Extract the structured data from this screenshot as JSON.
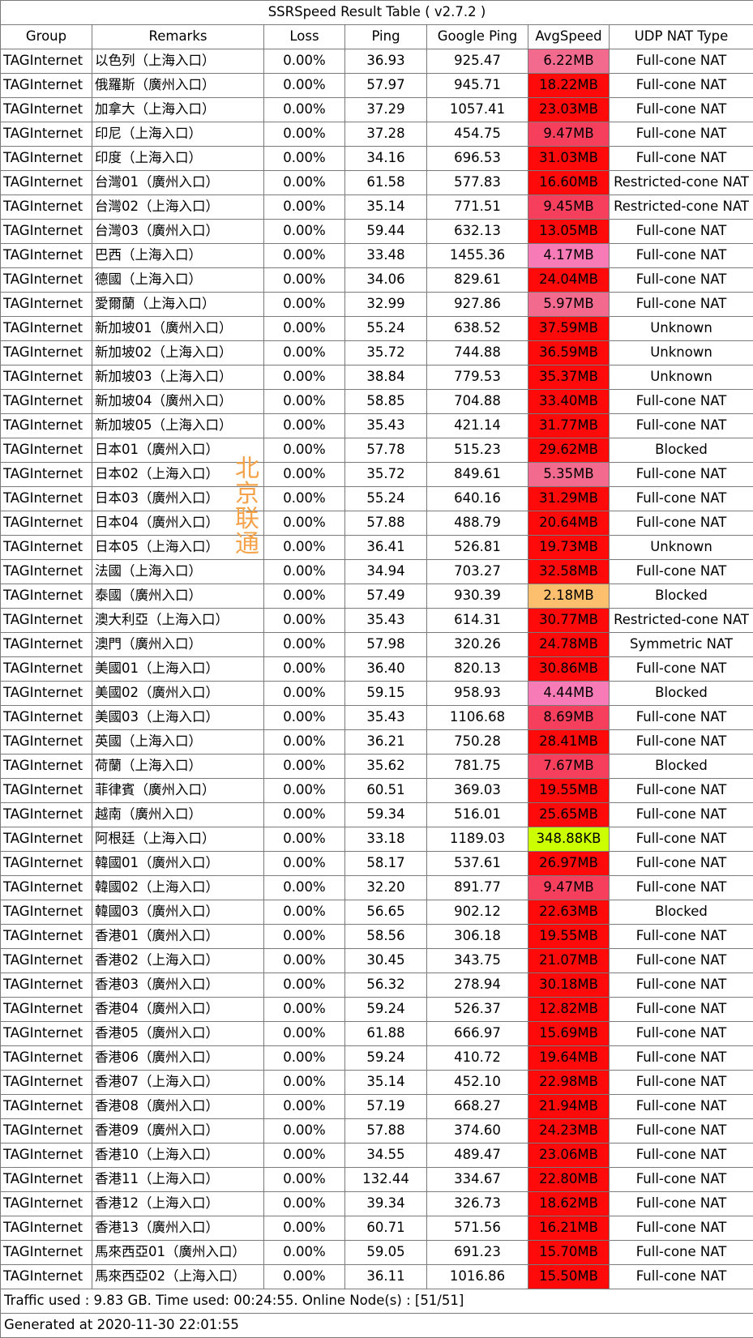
{
  "title": "SSRSpeed Result Table ( v2.7.2 )",
  "columns": [
    "Group",
    "Remarks",
    "Loss",
    "Ping",
    "Google Ping",
    "AvgSpeed",
    "UDP NAT Type"
  ],
  "rows": [
    {
      "group": "TAGInternet",
      "remarks": "以色列（上海入口）",
      "loss": "0.00%",
      "ping": "36.93",
      "google_ping": "925.47",
      "avg_speed": "6.22MB",
      "speed_color": "#f26b8f",
      "nat": "Full-cone NAT"
    },
    {
      "group": "TAGInternet",
      "remarks": "俄羅斯（廣州入口）",
      "loss": "0.00%",
      "ping": "57.97",
      "google_ping": "945.71",
      "avg_speed": "18.22MB",
      "speed_color": "#ff0a0a",
      "nat": "Full-cone NAT"
    },
    {
      "group": "TAGInternet",
      "remarks": "加拿大（上海入口）",
      "loss": "0.00%",
      "ping": "37.29",
      "google_ping": "1057.41",
      "avg_speed": "23.03MB",
      "speed_color": "#ff0a0a",
      "nat": "Full-cone NAT"
    },
    {
      "group": "TAGInternet",
      "remarks": "印尼（上海入口）",
      "loss": "0.00%",
      "ping": "37.28",
      "google_ping": "454.75",
      "avg_speed": "9.47MB",
      "speed_color": "#f53f5c",
      "nat": "Full-cone NAT"
    },
    {
      "group": "TAGInternet",
      "remarks": "印度（上海入口）",
      "loss": "0.00%",
      "ping": "34.16",
      "google_ping": "696.53",
      "avg_speed": "31.03MB",
      "speed_color": "#ff0a0a",
      "nat": "Full-cone NAT"
    },
    {
      "group": "TAGInternet",
      "remarks": "台灣01（廣州入口）",
      "loss": "0.00%",
      "ping": "61.58",
      "google_ping": "577.83",
      "avg_speed": "16.60MB",
      "speed_color": "#ff0a0a",
      "nat": "Restricted-cone NAT"
    },
    {
      "group": "TAGInternet",
      "remarks": "台灣02（上海入口）",
      "loss": "0.00%",
      "ping": "35.14",
      "google_ping": "771.51",
      "avg_speed": "9.45MB",
      "speed_color": "#f53f5c",
      "nat": "Restricted-cone NAT"
    },
    {
      "group": "TAGInternet",
      "remarks": "台灣03（廣州入口）",
      "loss": "0.00%",
      "ping": "59.44",
      "google_ping": "632.13",
      "avg_speed": "13.05MB",
      "speed_color": "#ff0a0a",
      "nat": "Full-cone NAT"
    },
    {
      "group": "TAGInternet",
      "remarks": "巴西（上海入口）",
      "loss": "0.00%",
      "ping": "33.48",
      "google_ping": "1455.36",
      "avg_speed": "4.17MB",
      "speed_color": "#f77bb7",
      "nat": "Full-cone NAT"
    },
    {
      "group": "TAGInternet",
      "remarks": "德國（上海入口）",
      "loss": "0.00%",
      "ping": "34.06",
      "google_ping": "829.61",
      "avg_speed": "24.04MB",
      "speed_color": "#ff0a0a",
      "nat": "Full-cone NAT"
    },
    {
      "group": "TAGInternet",
      "remarks": "愛爾蘭（上海入口）",
      "loss": "0.00%",
      "ping": "32.99",
      "google_ping": "927.86",
      "avg_speed": "5.97MB",
      "speed_color": "#f26b8f",
      "nat": "Full-cone NAT"
    },
    {
      "group": "TAGInternet",
      "remarks": "新加坡01（廣州入口）",
      "loss": "0.00%",
      "ping": "55.24",
      "google_ping": "638.52",
      "avg_speed": "37.59MB",
      "speed_color": "#ff0a0a",
      "nat": "Unknown"
    },
    {
      "group": "TAGInternet",
      "remarks": "新加坡02（上海入口）",
      "loss": "0.00%",
      "ping": "35.72",
      "google_ping": "744.88",
      "avg_speed": "36.59MB",
      "speed_color": "#ff0a0a",
      "nat": "Unknown"
    },
    {
      "group": "TAGInternet",
      "remarks": "新加坡03（上海入口）",
      "loss": "0.00%",
      "ping": "38.84",
      "google_ping": "779.53",
      "avg_speed": "35.37MB",
      "speed_color": "#ff0a0a",
      "nat": "Unknown"
    },
    {
      "group": "TAGInternet",
      "remarks": "新加坡04（廣州入口）",
      "loss": "0.00%",
      "ping": "58.85",
      "google_ping": "704.88",
      "avg_speed": "33.40MB",
      "speed_color": "#ff0a0a",
      "nat": "Full-cone NAT"
    },
    {
      "group": "TAGInternet",
      "remarks": "新加坡05（上海入口）",
      "loss": "0.00%",
      "ping": "35.43",
      "google_ping": "421.14",
      "avg_speed": "31.77MB",
      "speed_color": "#ff0a0a",
      "nat": "Full-cone NAT"
    },
    {
      "group": "TAGInternet",
      "remarks": "日本01（廣州入口）",
      "loss": "0.00%",
      "ping": "57.78",
      "google_ping": "515.23",
      "avg_speed": "29.62MB",
      "speed_color": "#ff0a0a",
      "nat": "Blocked"
    },
    {
      "group": "TAGInternet",
      "remarks": "日本02（上海入口）",
      "loss": "0.00%",
      "ping": "35.72",
      "google_ping": "849.61",
      "avg_speed": "5.35MB",
      "speed_color": "#f26b8f",
      "nat": "Full-cone NAT"
    },
    {
      "group": "TAGInternet",
      "remarks": "日本03（廣州入口）",
      "loss": "0.00%",
      "ping": "55.24",
      "google_ping": "640.16",
      "avg_speed": "31.29MB",
      "speed_color": "#ff0a0a",
      "nat": "Full-cone NAT"
    },
    {
      "group": "TAGInternet",
      "remarks": "日本04（廣州入口）",
      "loss": "0.00%",
      "ping": "57.88",
      "google_ping": "488.79",
      "avg_speed": "20.64MB",
      "speed_color": "#ff0a0a",
      "nat": "Full-cone NAT"
    },
    {
      "group": "TAGInternet",
      "remarks": "日本05（上海入口）",
      "loss": "0.00%",
      "ping": "36.41",
      "google_ping": "526.81",
      "avg_speed": "19.73MB",
      "speed_color": "#ff0a0a",
      "nat": "Unknown"
    },
    {
      "group": "TAGInternet",
      "remarks": "法國（上海入口）",
      "loss": "0.00%",
      "ping": "34.94",
      "google_ping": "703.27",
      "avg_speed": "32.58MB",
      "speed_color": "#ff0a0a",
      "nat": "Full-cone NAT"
    },
    {
      "group": "TAGInternet",
      "remarks": "泰國（廣州入口）",
      "loss": "0.00%",
      "ping": "57.49",
      "google_ping": "930.39",
      "avg_speed": "2.18MB",
      "speed_color": "#fbbf6e",
      "nat": "Blocked"
    },
    {
      "group": "TAGInternet",
      "remarks": "澳大利亞（上海入口）",
      "loss": "0.00%",
      "ping": "35.43",
      "google_ping": "614.31",
      "avg_speed": "30.77MB",
      "speed_color": "#ff0a0a",
      "nat": "Restricted-cone NAT"
    },
    {
      "group": "TAGInternet",
      "remarks": "澳門（廣州入口）",
      "loss": "0.00%",
      "ping": "57.98",
      "google_ping": "320.26",
      "avg_speed": "24.78MB",
      "speed_color": "#ff0a0a",
      "nat": "Symmetric NAT"
    },
    {
      "group": "TAGInternet",
      "remarks": "美國01（上海入口）",
      "loss": "0.00%",
      "ping": "36.40",
      "google_ping": "820.13",
      "avg_speed": "30.86MB",
      "speed_color": "#ff0a0a",
      "nat": "Full-cone NAT"
    },
    {
      "group": "TAGInternet",
      "remarks": "美國02（廣州入口）",
      "loss": "0.00%",
      "ping": "59.15",
      "google_ping": "958.93",
      "avg_speed": "4.44MB",
      "speed_color": "#f77bb7",
      "nat": "Blocked"
    },
    {
      "group": "TAGInternet",
      "remarks": "美國03（上海入口）",
      "loss": "0.00%",
      "ping": "35.43",
      "google_ping": "1106.68",
      "avg_speed": "8.69MB",
      "speed_color": "#f53f5c",
      "nat": "Full-cone NAT"
    },
    {
      "group": "TAGInternet",
      "remarks": "英國（上海入口）",
      "loss": "0.00%",
      "ping": "36.21",
      "google_ping": "750.28",
      "avg_speed": "28.41MB",
      "speed_color": "#ff0a0a",
      "nat": "Full-cone NAT"
    },
    {
      "group": "TAGInternet",
      "remarks": "荷蘭（上海入口）",
      "loss": "0.00%",
      "ping": "35.62",
      "google_ping": "781.75",
      "avg_speed": "7.67MB",
      "speed_color": "#f53f5c",
      "nat": "Blocked"
    },
    {
      "group": "TAGInternet",
      "remarks": "菲律賓（廣州入口）",
      "loss": "0.00%",
      "ping": "60.51",
      "google_ping": "369.03",
      "avg_speed": "19.55MB",
      "speed_color": "#ff0a0a",
      "nat": "Full-cone NAT"
    },
    {
      "group": "TAGInternet",
      "remarks": "越南（廣州入口）",
      "loss": "0.00%",
      "ping": "59.34",
      "google_ping": "516.01",
      "avg_speed": "25.65MB",
      "speed_color": "#ff0a0a",
      "nat": "Full-cone NAT"
    },
    {
      "group": "TAGInternet",
      "remarks": "阿根廷（上海入口）",
      "loss": "0.00%",
      "ping": "33.18",
      "google_ping": "1189.03",
      "avg_speed": "348.88KB",
      "speed_color": "#ccff00",
      "nat": "Full-cone NAT"
    },
    {
      "group": "TAGInternet",
      "remarks": "韓國01（廣州入口）",
      "loss": "0.00%",
      "ping": "58.17",
      "google_ping": "537.61",
      "avg_speed": "26.97MB",
      "speed_color": "#ff0a0a",
      "nat": "Full-cone NAT"
    },
    {
      "group": "TAGInternet",
      "remarks": "韓國02（上海入口）",
      "loss": "0.00%",
      "ping": "32.20",
      "google_ping": "891.77",
      "avg_speed": "9.47MB",
      "speed_color": "#f53f5c",
      "nat": "Full-cone NAT"
    },
    {
      "group": "TAGInternet",
      "remarks": "韓國03（廣州入口）",
      "loss": "0.00%",
      "ping": "56.65",
      "google_ping": "902.12",
      "avg_speed": "22.63MB",
      "speed_color": "#ff0a0a",
      "nat": "Blocked"
    },
    {
      "group": "TAGInternet",
      "remarks": "香港01（廣州入口）",
      "loss": "0.00%",
      "ping": "58.56",
      "google_ping": "306.18",
      "avg_speed": "19.55MB",
      "speed_color": "#ff0a0a",
      "nat": "Full-cone NAT"
    },
    {
      "group": "TAGInternet",
      "remarks": "香港02（上海入口）",
      "loss": "0.00%",
      "ping": "30.45",
      "google_ping": "343.75",
      "avg_speed": "21.07MB",
      "speed_color": "#ff0a0a",
      "nat": "Full-cone NAT"
    },
    {
      "group": "TAGInternet",
      "remarks": "香港03（廣州入口）",
      "loss": "0.00%",
      "ping": "56.32",
      "google_ping": "278.94",
      "avg_speed": "30.18MB",
      "speed_color": "#ff0a0a",
      "nat": "Full-cone NAT"
    },
    {
      "group": "TAGInternet",
      "remarks": "香港04（廣州入口）",
      "loss": "0.00%",
      "ping": "59.24",
      "google_ping": "526.37",
      "avg_speed": "12.82MB",
      "speed_color": "#ff0a0a",
      "nat": "Full-cone NAT"
    },
    {
      "group": "TAGInternet",
      "remarks": "香港05（廣州入口）",
      "loss": "0.00%",
      "ping": "61.88",
      "google_ping": "666.97",
      "avg_speed": "15.69MB",
      "speed_color": "#ff0a0a",
      "nat": "Full-cone NAT"
    },
    {
      "group": "TAGInternet",
      "remarks": "香港06（廣州入口）",
      "loss": "0.00%",
      "ping": "59.24",
      "google_ping": "410.72",
      "avg_speed": "19.64MB",
      "speed_color": "#ff0a0a",
      "nat": "Full-cone NAT"
    },
    {
      "group": "TAGInternet",
      "remarks": "香港07（上海入口）",
      "loss": "0.00%",
      "ping": "35.14",
      "google_ping": "452.10",
      "avg_speed": "22.98MB",
      "speed_color": "#ff0a0a",
      "nat": "Full-cone NAT"
    },
    {
      "group": "TAGInternet",
      "remarks": "香港08（廣州入口）",
      "loss": "0.00%",
      "ping": "57.19",
      "google_ping": "668.27",
      "avg_speed": "21.94MB",
      "speed_color": "#ff0a0a",
      "nat": "Full-cone NAT"
    },
    {
      "group": "TAGInternet",
      "remarks": "香港09（廣州入口）",
      "loss": "0.00%",
      "ping": "57.88",
      "google_ping": "374.60",
      "avg_speed": "24.23MB",
      "speed_color": "#ff0a0a",
      "nat": "Full-cone NAT"
    },
    {
      "group": "TAGInternet",
      "remarks": "香港10（上海入口）",
      "loss": "0.00%",
      "ping": "34.55",
      "google_ping": "489.47",
      "avg_speed": "23.06MB",
      "speed_color": "#ff0a0a",
      "nat": "Full-cone NAT"
    },
    {
      "group": "TAGInternet",
      "remarks": "香港11（上海入口）",
      "loss": "0.00%",
      "ping": "132.44",
      "google_ping": "334.67",
      "avg_speed": "22.80MB",
      "speed_color": "#ff0a0a",
      "nat": "Full-cone NAT"
    },
    {
      "group": "TAGInternet",
      "remarks": "香港12（上海入口）",
      "loss": "0.00%",
      "ping": "39.34",
      "google_ping": "326.73",
      "avg_speed": "18.62MB",
      "speed_color": "#ff0a0a",
      "nat": "Full-cone NAT"
    },
    {
      "group": "TAGInternet",
      "remarks": "香港13（廣州入口）",
      "loss": "0.00%",
      "ping": "60.71",
      "google_ping": "571.56",
      "avg_speed": "16.21MB",
      "speed_color": "#ff0a0a",
      "nat": "Full-cone NAT"
    },
    {
      "group": "TAGInternet",
      "remarks": "馬來西亞01（廣州入口）",
      "loss": "0.00%",
      "ping": "59.05",
      "google_ping": "691.23",
      "avg_speed": "15.70MB",
      "speed_color": "#ff0a0a",
      "nat": "Full-cone NAT"
    },
    {
      "group": "TAGInternet",
      "remarks": "馬來西亞02（上海入口）",
      "loss": "0.00%",
      "ping": "36.11",
      "google_ping": "1016.86",
      "avg_speed": "15.50MB",
      "speed_color": "#ff0a0a",
      "nat": "Full-cone NAT"
    }
  ],
  "footer": {
    "traffic": "Traffic used : 9.83 GB. Time used: 00:24:55. Online Node(s) : [51/51]",
    "generated": "Generated at 2020-11-30 22:01:55"
  },
  "watermark": [
    "北",
    "京",
    "联",
    "通"
  ],
  "watermark_color": "#f5a34a"
}
